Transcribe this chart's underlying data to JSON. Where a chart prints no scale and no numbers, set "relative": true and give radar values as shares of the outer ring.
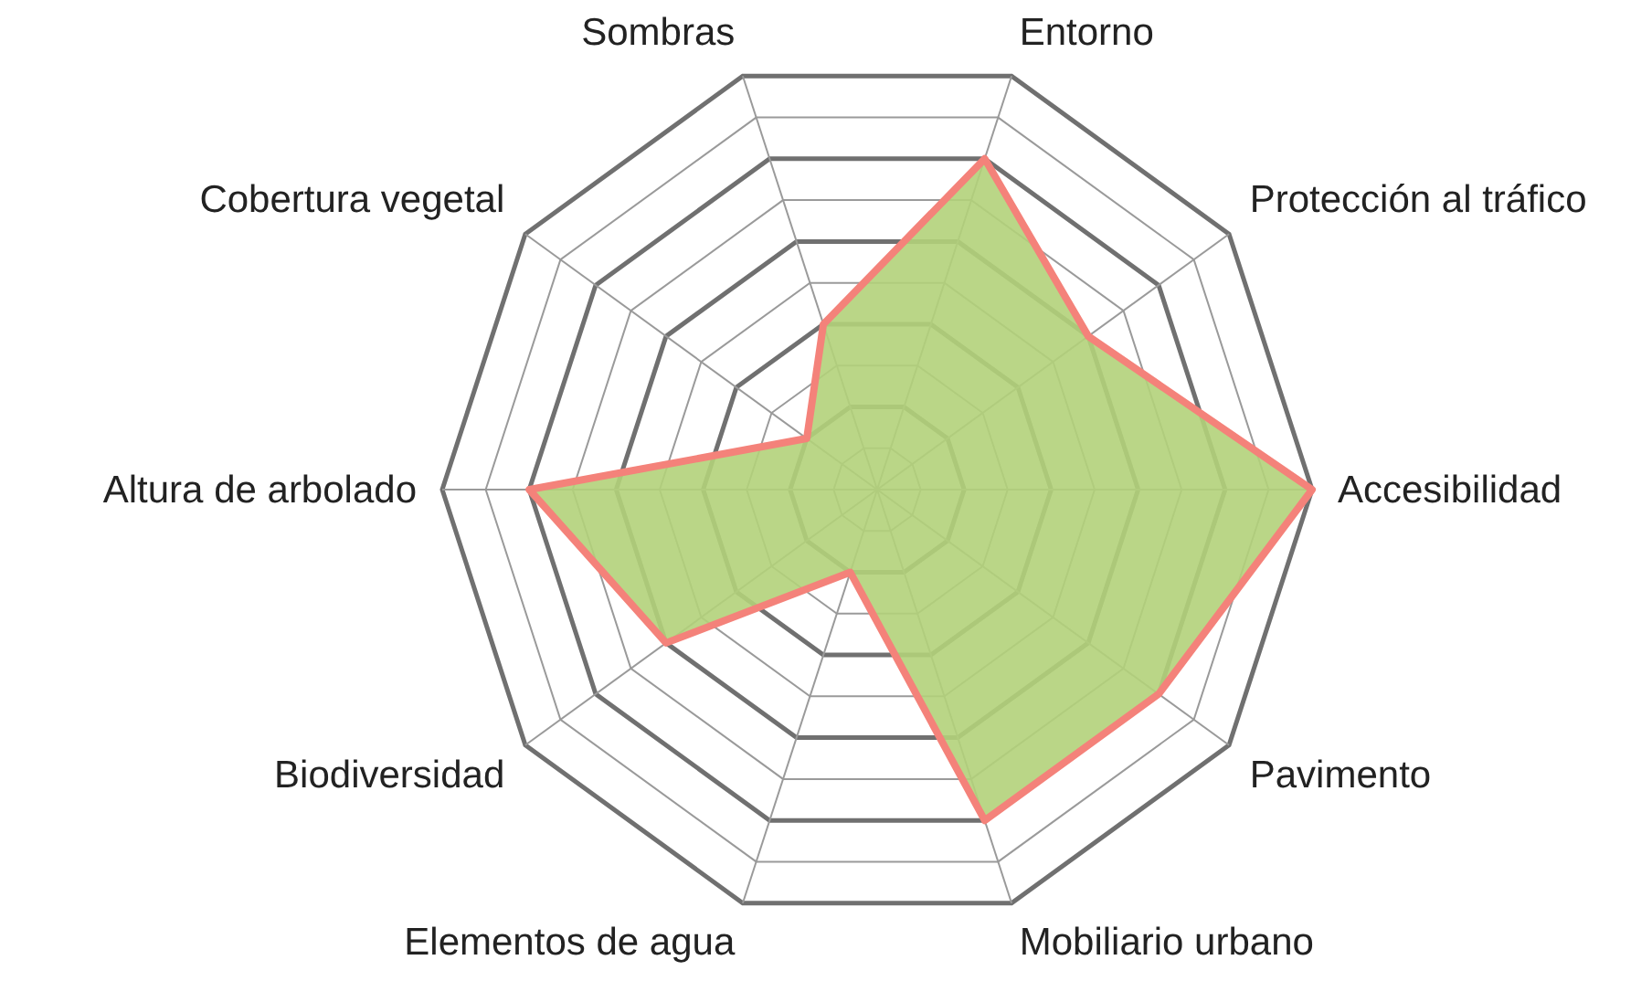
{
  "chart_data": {
    "type": "radar",
    "relative": true,
    "grid": true,
    "categories": [
      "Entorno",
      "Protección al tráfico",
      "Accesibilidad",
      "Pavimento",
      "Mobiliario urbano",
      "Elementos de agua",
      "Biodiversidad",
      "Altura de arbolado",
      "Cobertura vegetal",
      "Sombras"
    ],
    "series": [
      {
        "color": "#b3d17a",
        "values": [
          0.8,
          0.6,
          1.0,
          0.8,
          0.8,
          0.2,
          0.6,
          0.8,
          0.2,
          0.4
        ]
      }
    ]
  }
}
